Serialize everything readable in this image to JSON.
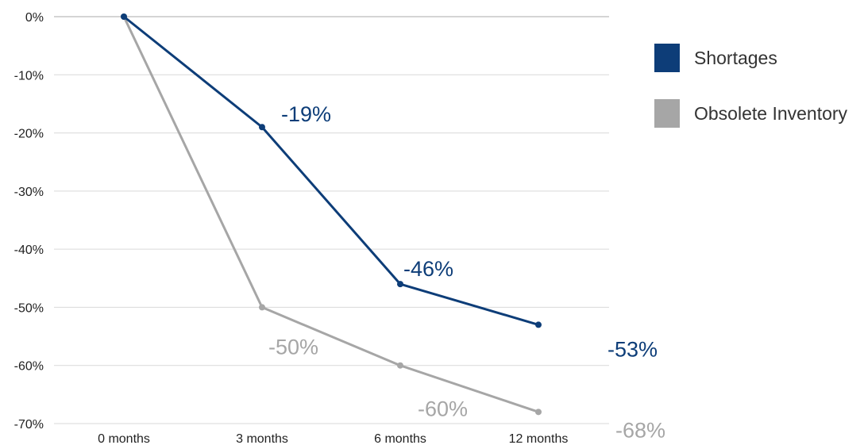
{
  "chart_data": {
    "type": "line",
    "categories": [
      "0 months",
      "3 months",
      "6 months",
      "12 months"
    ],
    "series": [
      {
        "name": "Shortages",
        "values": [
          0,
          -19,
          -46,
          -53
        ],
        "labels": [
          "",
          "-19%",
          "-46%",
          "-53%"
        ],
        "color": "#0d3d78"
      },
      {
        "name": "Obsolete Inventory",
        "values": [
          0,
          -50,
          -60,
          -68
        ],
        "labels": [
          "",
          "-50%",
          "-60%",
          "-68%"
        ],
        "color": "#a6a6a6"
      }
    ],
    "yticks": [
      0,
      -10,
      -20,
      -30,
      -40,
      -50,
      -60,
      -70
    ],
    "ytick_labels": [
      "0%",
      "-10%",
      "-20%",
      "-30%",
      "-40%",
      "-50%",
      "-60%",
      "-70%"
    ],
    "ylim": [
      -70,
      0
    ],
    "grid": true,
    "legend_position": "right",
    "title": "",
    "xlabel": "",
    "ylabel": ""
  }
}
